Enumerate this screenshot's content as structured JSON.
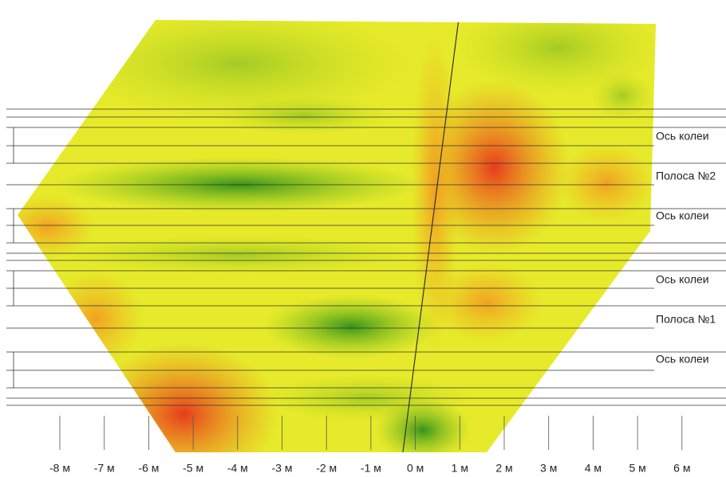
{
  "lane_labels": [
    "Ось колеи",
    "Полоса №2",
    "Ось колеи",
    "Ось колеи",
    "Полоса №1",
    "Ось колеи"
  ],
  "x_axis_labels": [
    "-8 м",
    "-7 м",
    "-6 м",
    "-5 м",
    "-4 м",
    "-3 м",
    "-2 м",
    "-1 м",
    "0 м",
    "1 м",
    "2 м",
    "3 м",
    "4 м",
    "5 м",
    "6 м"
  ]
}
